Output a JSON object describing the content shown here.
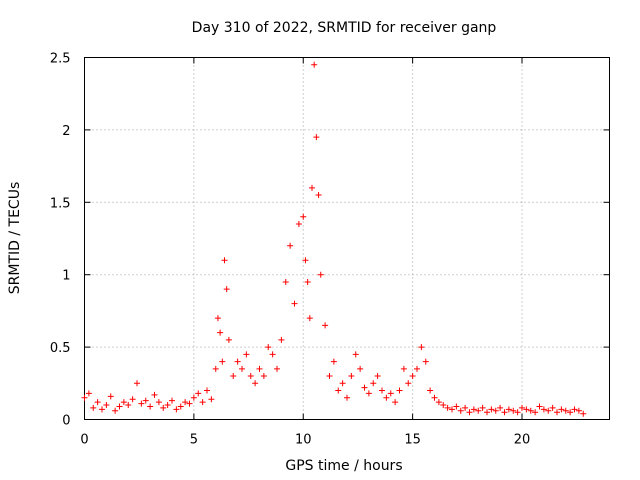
{
  "chart_data": {
    "type": "scatter",
    "title": "Day 310 of 2022, SRMTID for receiver ganp",
    "xlabel": "GPS time / hours",
    "ylabel": "SRMTID / TECUs",
    "xlim": [
      0,
      24
    ],
    "ylim": [
      0,
      2.5
    ],
    "xticks": [
      0,
      5,
      10,
      15,
      20
    ],
    "xtick_labels": [
      "0",
      "5",
      "10",
      "15",
      "20"
    ],
    "yticks": [
      0,
      0.5,
      1,
      1.5,
      2,
      2.5
    ],
    "ytick_labels": [
      "0",
      "0.5",
      "1",
      "1.5",
      "2",
      "2.5"
    ],
    "grid": true,
    "marker": "+",
    "color": "#ff0000",
    "series": [
      {
        "name": "SRMTID",
        "x": [
          0.0,
          0.2,
          0.4,
          0.6,
          0.8,
          1.0,
          1.2,
          1.4,
          1.6,
          1.8,
          2.0,
          2.2,
          2.4,
          2.6,
          2.8,
          3.0,
          3.2,
          3.4,
          3.6,
          3.8,
          4.0,
          4.2,
          4.4,
          4.6,
          4.8,
          5.0,
          5.2,
          5.4,
          5.6,
          5.8,
          6.0,
          6.1,
          6.2,
          6.3,
          6.4,
          6.5,
          6.6,
          6.8,
          7.0,
          7.2,
          7.4,
          7.6,
          7.8,
          8.0,
          8.2,
          8.4,
          8.6,
          8.8,
          9.0,
          9.2,
          9.4,
          9.6,
          9.8,
          10.0,
          10.1,
          10.2,
          10.3,
          10.4,
          10.5,
          10.6,
          10.7,
          10.8,
          11.0,
          11.2,
          11.4,
          11.6,
          11.8,
          12.0,
          12.2,
          12.4,
          12.6,
          12.8,
          13.0,
          13.2,
          13.4,
          13.6,
          13.8,
          14.0,
          14.2,
          14.4,
          14.6,
          14.8,
          15.0,
          15.2,
          15.4,
          15.6,
          15.8,
          16.0,
          16.2,
          16.4,
          16.6,
          16.8,
          17.0,
          17.2,
          17.4,
          17.6,
          17.8,
          18.0,
          18.2,
          18.4,
          18.6,
          18.8,
          19.0,
          19.2,
          19.4,
          19.6,
          19.8,
          20.0,
          20.2,
          20.4,
          20.6,
          20.8,
          21.0,
          21.2,
          21.4,
          21.6,
          21.8,
          22.0,
          22.2,
          22.4,
          22.6,
          22.8
        ],
        "y": [
          0.15,
          0.18,
          0.08,
          0.12,
          0.07,
          0.1,
          0.16,
          0.06,
          0.09,
          0.12,
          0.1,
          0.14,
          0.25,
          0.11,
          0.13,
          0.09,
          0.17,
          0.12,
          0.08,
          0.1,
          0.13,
          0.07,
          0.09,
          0.12,
          0.11,
          0.15,
          0.18,
          0.12,
          0.2,
          0.14,
          0.35,
          0.7,
          0.6,
          0.4,
          1.1,
          0.9,
          0.55,
          0.3,
          0.4,
          0.35,
          0.45,
          0.3,
          0.25,
          0.35,
          0.3,
          0.5,
          0.45,
          0.35,
          0.55,
          0.95,
          1.2,
          0.8,
          1.35,
          1.4,
          1.1,
          0.95,
          0.7,
          1.6,
          2.45,
          1.95,
          1.55,
          1.0,
          0.65,
          0.3,
          0.4,
          0.2,
          0.25,
          0.15,
          0.3,
          0.45,
          0.35,
          0.22,
          0.18,
          0.25,
          0.3,
          0.2,
          0.15,
          0.18,
          0.12,
          0.2,
          0.35,
          0.25,
          0.3,
          0.35,
          0.5,
          0.4,
          0.2,
          0.15,
          0.12,
          0.1,
          0.08,
          0.07,
          0.09,
          0.06,
          0.08,
          0.05,
          0.07,
          0.06,
          0.08,
          0.05,
          0.07,
          0.06,
          0.08,
          0.05,
          0.07,
          0.06,
          0.05,
          0.08,
          0.07,
          0.06,
          0.05,
          0.09,
          0.07,
          0.06,
          0.08,
          0.05,
          0.07,
          0.06,
          0.05,
          0.07,
          0.06,
          0.04
        ]
      }
    ]
  }
}
